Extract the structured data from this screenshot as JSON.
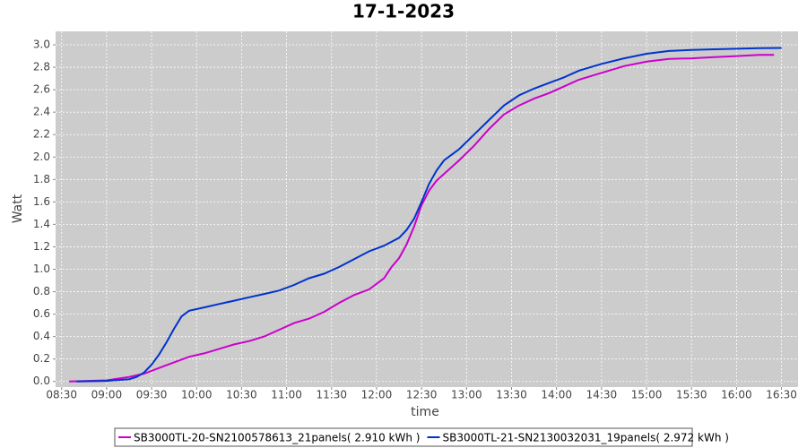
{
  "chart_data": {
    "type": "line",
    "title": "17-1-2023",
    "x_label": "time",
    "y_label": "Watt",
    "xlim": [
      "08:26",
      "16:41"
    ],
    "ylim": [
      -0.05,
      3.12
    ],
    "xticks": [
      "08:30",
      "09:00",
      "09:30",
      "10:00",
      "10:30",
      "11:00",
      "11:30",
      "12:00",
      "12:30",
      "13:00",
      "13:30",
      "14:00",
      "14:30",
      "15:00",
      "15:30",
      "16:00",
      "16:30"
    ],
    "yticks": [
      {
        "value": 0,
        "label": "0.0"
      },
      0.2,
      0.4,
      0.6,
      0.8,
      {
        "value": 1,
        "label": "1.0"
      },
      1.2,
      1.4,
      1.6,
      1.8,
      {
        "value": 2,
        "label": "2.0"
      },
      2.2,
      2.4,
      2.6,
      2.8,
      {
        "value": 3,
        "label": "3.0"
      }
    ],
    "grid": true,
    "series": [
      {
        "name": "SB3000TL-20-SN2100578613_21panels( 2.910 kWh )",
        "color": "#cc00cc",
        "x": [
          "08:35",
          "09:00",
          "09:15",
          "09:25",
          "09:35",
          "09:45",
          "09:55",
          "10:05",
          "10:15",
          "10:25",
          "10:35",
          "10:45",
          "10:55",
          "11:05",
          "11:15",
          "11:25",
          "11:35",
          "11:45",
          "11:55",
          "12:05",
          "12:10",
          "12:15",
          "12:20",
          "12:25",
          "12:30",
          "12:35",
          "12:40",
          "12:45",
          "12:55",
          "13:05",
          "13:15",
          "13:25",
          "13:35",
          "13:45",
          "13:55",
          "14:05",
          "14:15",
          "14:30",
          "14:45",
          "15:00",
          "15:15",
          "15:30",
          "15:45",
          "16:00",
          "16:15",
          "16:25"
        ],
        "values": [
          0.0,
          0.01,
          0.04,
          0.07,
          0.12,
          0.17,
          0.22,
          0.25,
          0.29,
          0.33,
          0.36,
          0.4,
          0.46,
          0.52,
          0.56,
          0.62,
          0.7,
          0.77,
          0.82,
          0.92,
          1.02,
          1.1,
          1.22,
          1.38,
          1.57,
          1.7,
          1.79,
          1.85,
          1.97,
          2.1,
          2.25,
          2.38,
          2.46,
          2.52,
          2.57,
          2.63,
          2.69,
          2.75,
          2.81,
          2.85,
          2.875,
          2.88,
          2.89,
          2.9,
          2.91,
          2.91
        ]
      },
      {
        "name": "SB3000TL-21-SN2130032031_19panels( 2.972 kWh )",
        "color": "#0033cc",
        "x": [
          "08:40",
          "09:00",
          "09:15",
          "09:20",
          "09:25",
          "09:30",
          "09:35",
          "09:40",
          "09:45",
          "09:50",
          "09:55",
          "10:05",
          "10:15",
          "10:25",
          "10:35",
          "10:45",
          "10:55",
          "11:05",
          "11:15",
          "11:25",
          "11:35",
          "11:45",
          "11:55",
          "12:05",
          "12:15",
          "12:20",
          "12:25",
          "12:30",
          "12:35",
          "12:40",
          "12:45",
          "12:55",
          "13:05",
          "13:15",
          "13:25",
          "13:35",
          "13:45",
          "13:55",
          "14:05",
          "14:15",
          "14:30",
          "14:45",
          "15:00",
          "15:15",
          "15:30",
          "15:45",
          "16:00",
          "16:15",
          "16:30"
        ],
        "values": [
          0.0,
          0.005,
          0.02,
          0.04,
          0.08,
          0.15,
          0.24,
          0.35,
          0.47,
          0.58,
          0.63,
          0.66,
          0.69,
          0.72,
          0.75,
          0.78,
          0.81,
          0.86,
          0.92,
          0.96,
          1.02,
          1.09,
          1.16,
          1.21,
          1.28,
          1.35,
          1.45,
          1.6,
          1.76,
          1.88,
          1.97,
          2.07,
          2.2,
          2.33,
          2.46,
          2.55,
          2.61,
          2.66,
          2.71,
          2.77,
          2.83,
          2.88,
          2.92,
          2.945,
          2.955,
          2.96,
          2.965,
          2.97,
          2.972
        ]
      }
    ]
  }
}
